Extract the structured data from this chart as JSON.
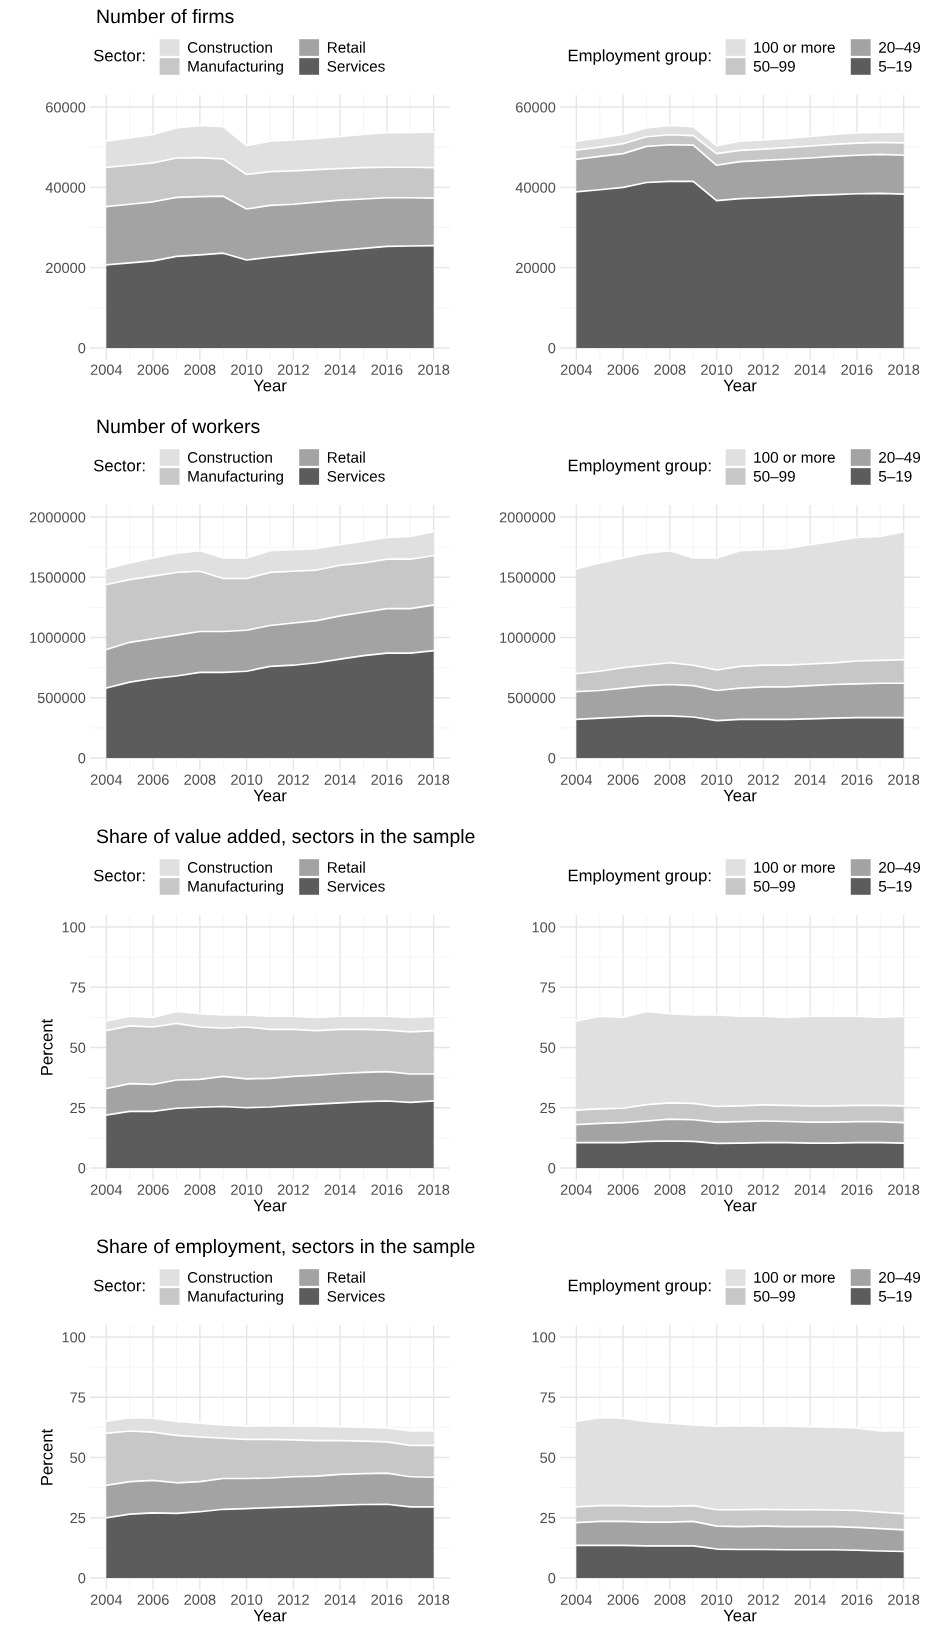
{
  "chart_data": [
    {
      "type": "area",
      "stacked": true,
      "title": "Number of firms",
      "xlabel": "Year",
      "legend_title": "Sector:",
      "legend": "top",
      "grid": true,
      "x": [
        2004,
        2005,
        2006,
        2007,
        2008,
        2009,
        2010,
        2011,
        2012,
        2013,
        2014,
        2015,
        2016,
        2017,
        2018
      ],
      "xlim": [
        2003.3,
        2018.7
      ],
      "xticks": [
        2004,
        2006,
        2008,
        2010,
        2012,
        2014,
        2016,
        2018
      ],
      "ylim": [
        -3000,
        63000
      ],
      "yticks": [
        0,
        20000,
        40000,
        60000
      ],
      "series": [
        {
          "name": "Services",
          "color": "#5c5c5c",
          "values": [
            20700,
            21200,
            21700,
            22800,
            23200,
            23600,
            21900,
            22600,
            23200,
            23800,
            24300,
            24800,
            25300,
            25400,
            25500
          ]
        },
        {
          "name": "Retail",
          "color": "#a3a3a3",
          "values": [
            14500,
            14600,
            14700,
            14700,
            14500,
            14200,
            12700,
            12900,
            12600,
            12500,
            12500,
            12300,
            12100,
            12000,
            11800
          ]
        },
        {
          "name": "Manufacturing",
          "color": "#c7c7c7",
          "values": [
            9800,
            9700,
            9700,
            9800,
            9700,
            9300,
            8600,
            8400,
            8300,
            8100,
            7900,
            7800,
            7600,
            7600,
            7600
          ]
        },
        {
          "name": "Construction",
          "color": "#e0e0e0",
          "values": [
            6500,
            6800,
            7100,
            7500,
            8000,
            8000,
            7200,
            7600,
            7700,
            7800,
            8000,
            8300,
            8600,
            8700,
            8900
          ]
        }
      ]
    },
    {
      "type": "area",
      "stacked": true,
      "xlabel": "Year",
      "legend_title": "Employment group:",
      "legend": "top",
      "grid": true,
      "x": [
        2004,
        2005,
        2006,
        2007,
        2008,
        2009,
        2010,
        2011,
        2012,
        2013,
        2014,
        2015,
        2016,
        2017,
        2018
      ],
      "xlim": [
        2003.3,
        2018.7
      ],
      "xticks": [
        2004,
        2006,
        2008,
        2010,
        2012,
        2014,
        2016,
        2018
      ],
      "ylim": [
        -3000,
        63000
      ],
      "yticks": [
        0,
        20000,
        40000,
        60000
      ],
      "series": [
        {
          "name": "5–19",
          "color": "#5c5c5c",
          "values": [
            38900,
            39400,
            40000,
            41200,
            41500,
            41500,
            36700,
            37200,
            37400,
            37700,
            38000,
            38200,
            38400,
            38500,
            38300
          ]
        },
        {
          "name": "20–49",
          "color": "#a3a3a3",
          "values": [
            8100,
            8300,
            8400,
            9000,
            9100,
            9000,
            8800,
            9200,
            9300,
            9300,
            9300,
            9500,
            9600,
            9700,
            9700
          ]
        },
        {
          "name": "50–99",
          "color": "#c7c7c7",
          "values": [
            2300,
            2300,
            2500,
            2400,
            2500,
            2400,
            2900,
            2800,
            2800,
            2900,
            3000,
            3000,
            3000,
            3000,
            3100
          ]
        },
        {
          "name": "100 or more",
          "color": "#e0e0e0",
          "values": [
            2200,
            2300,
            2300,
            2200,
            2300,
            2200,
            2000,
            2300,
            2300,
            2300,
            2400,
            2500,
            2600,
            2500,
            2700
          ]
        }
      ]
    },
    {
      "type": "area",
      "stacked": true,
      "title": "Number of workers",
      "xlabel": "Year",
      "legend_title": "Sector:",
      "legend": "top",
      "grid": true,
      "x": [
        2004,
        2005,
        2006,
        2007,
        2008,
        2009,
        2010,
        2011,
        2012,
        2013,
        2014,
        2015,
        2016,
        2017,
        2018
      ],
      "xlim": [
        2003.3,
        2018.7
      ],
      "xticks": [
        2004,
        2006,
        2008,
        2010,
        2012,
        2014,
        2016,
        2018
      ],
      "ylim": [
        -100000,
        2100000
      ],
      "yticks": [
        0,
        500000,
        1000000,
        1500000,
        2000000
      ],
      "series": [
        {
          "name": "Services",
          "color": "#5c5c5c",
          "values": [
            580000,
            630000,
            660000,
            680000,
            710000,
            710000,
            720000,
            760000,
            770000,
            790000,
            820000,
            850000,
            870000,
            870000,
            890000
          ]
        },
        {
          "name": "Retail",
          "color": "#a3a3a3",
          "values": [
            320000,
            330000,
            330000,
            340000,
            340000,
            340000,
            340000,
            340000,
            350000,
            350000,
            360000,
            360000,
            370000,
            370000,
            380000
          ]
        },
        {
          "name": "Manufacturing",
          "color": "#c7c7c7",
          "values": [
            540000,
            520000,
            520000,
            520000,
            500000,
            440000,
            430000,
            440000,
            430000,
            420000,
            420000,
            410000,
            410000,
            410000,
            410000
          ]
        },
        {
          "name": "Construction",
          "color": "#e0e0e0",
          "values": [
            130000,
            140000,
            150000,
            160000,
            170000,
            170000,
            170000,
            180000,
            180000,
            180000,
            170000,
            180000,
            180000,
            190000,
            200000
          ]
        }
      ]
    },
    {
      "type": "area",
      "stacked": true,
      "xlabel": "Year",
      "legend_title": "Employment group:",
      "legend": "top",
      "grid": true,
      "x": [
        2004,
        2005,
        2006,
        2007,
        2008,
        2009,
        2010,
        2011,
        2012,
        2013,
        2014,
        2015,
        2016,
        2017,
        2018
      ],
      "xlim": [
        2003.3,
        2018.7
      ],
      "xticks": [
        2004,
        2006,
        2008,
        2010,
        2012,
        2014,
        2016,
        2018
      ],
      "ylim": [
        -100000,
        2100000
      ],
      "yticks": [
        0,
        500000,
        1000000,
        1500000,
        2000000
      ],
      "series": [
        {
          "name": "5–19",
          "color": "#5c5c5c",
          "values": [
            320000,
            330000,
            340000,
            350000,
            350000,
            340000,
            310000,
            320000,
            320000,
            320000,
            325000,
            330000,
            335000,
            335000,
            335000
          ]
        },
        {
          "name": "20–49",
          "color": "#a3a3a3",
          "values": [
            230000,
            230000,
            240000,
            250000,
            260000,
            260000,
            250000,
            260000,
            270000,
            270000,
            275000,
            280000,
            280000,
            285000,
            285000
          ]
        },
        {
          "name": "50–99",
          "color": "#c7c7c7",
          "values": [
            150000,
            160000,
            170000,
            170000,
            180000,
            170000,
            170000,
            180000,
            180000,
            180000,
            180000,
            180000,
            190000,
            190000,
            195000
          ]
        },
        {
          "name": "100 or more",
          "color": "#e0e0e0",
          "values": [
            870000,
            900000,
            910000,
            930000,
            930000,
            890000,
            930000,
            960000,
            960000,
            970000,
            990000,
            1010000,
            1025000,
            1030000,
            1065000
          ]
        }
      ]
    },
    {
      "type": "area",
      "stacked": true,
      "title": "Share of value added, sectors in the sample",
      "xlabel": "Year",
      "ylabel": "Percent",
      "legend_title": "Sector:",
      "legend": "top",
      "grid": true,
      "x": [
        2004,
        2005,
        2006,
        2007,
        2008,
        2009,
        2010,
        2011,
        2012,
        2013,
        2014,
        2015,
        2016,
        2017,
        2018
      ],
      "xlim": [
        2003.3,
        2018.7
      ],
      "xticks": [
        2004,
        2006,
        2008,
        2010,
        2012,
        2014,
        2016,
        2018
      ],
      "ylim": [
        -5,
        105
      ],
      "yticks": [
        0,
        25,
        50,
        75,
        100
      ],
      "series": [
        {
          "name": "Services",
          "color": "#5c5c5c",
          "values": [
            22,
            23.5,
            23.5,
            24.8,
            25.2,
            25.5,
            25,
            25.3,
            26,
            26.5,
            27,
            27.5,
            27.8,
            27.2,
            27.8
          ]
        },
        {
          "name": "Retail",
          "color": "#a3a3a3",
          "values": [
            11,
            11.5,
            11.2,
            11.7,
            11.6,
            12.5,
            12,
            11.9,
            12,
            12,
            12.2,
            12.2,
            12.2,
            11.8,
            11.2
          ]
        },
        {
          "name": "Manufacturing",
          "color": "#c7c7c7",
          "values": [
            24,
            24,
            23.8,
            23.5,
            21.7,
            20,
            21.5,
            20.3,
            19.5,
            18.5,
            18.3,
            17.8,
            17.2,
            17.5,
            18
          ]
        },
        {
          "name": "Construction",
          "color": "#e0e0e0",
          "values": [
            4,
            4,
            4,
            5,
            5.5,
            5.5,
            5,
            5.5,
            5.5,
            5.5,
            5.5,
            5.5,
            5.8,
            6,
            6
          ]
        }
      ]
    },
    {
      "type": "area",
      "stacked": true,
      "xlabel": "Year",
      "legend_title": "Employment group:",
      "legend": "top",
      "grid": true,
      "x": [
        2004,
        2005,
        2006,
        2007,
        2008,
        2009,
        2010,
        2011,
        2012,
        2013,
        2014,
        2015,
        2016,
        2017,
        2018
      ],
      "xlim": [
        2003.3,
        2018.7
      ],
      "xticks": [
        2004,
        2006,
        2008,
        2010,
        2012,
        2014,
        2016,
        2018
      ],
      "ylim": [
        -5,
        105
      ],
      "yticks": [
        0,
        25,
        50,
        75,
        100
      ],
      "series": [
        {
          "name": "5–19",
          "color": "#5c5c5c",
          "values": [
            10.5,
            10.5,
            10.5,
            11,
            11.2,
            11,
            10.2,
            10.3,
            10.5,
            10.5,
            10.3,
            10.3,
            10.5,
            10.5,
            10.3
          ]
        },
        {
          "name": "20–49",
          "color": "#a3a3a3",
          "values": [
            7.5,
            8,
            8.3,
            8.5,
            9.1,
            9,
            8.8,
            8.9,
            9,
            8.8,
            8.7,
            8.7,
            8.7,
            8.7,
            8.5
          ]
        },
        {
          "name": "50–99",
          "color": "#c7c7c7",
          "values": [
            6,
            6,
            6,
            6.8,
            6.7,
            6.8,
            6.5,
            6.6,
            6.7,
            6.7,
            6.8,
            6.8,
            6.8,
            6.8,
            7
          ]
        },
        {
          "name": "100 or more",
          "color": "#e0e0e0",
          "values": [
            37,
            38.5,
            37.7,
            38.7,
            37,
            36.7,
            38,
            37.2,
            36.8,
            36.5,
            37.2,
            37.2,
            37,
            36.5,
            37.2
          ]
        }
      ]
    },
    {
      "type": "area",
      "stacked": true,
      "title": "Share of employment, sectors in the sample",
      "xlabel": "Year",
      "ylabel": "Percent",
      "legend_title": "Sector:",
      "legend": "top",
      "grid": true,
      "x": [
        2004,
        2005,
        2006,
        2007,
        2008,
        2009,
        2010,
        2011,
        2012,
        2013,
        2014,
        2015,
        2016,
        2017,
        2018
      ],
      "xlim": [
        2003.3,
        2018.7
      ],
      "xticks": [
        2004,
        2006,
        2008,
        2010,
        2012,
        2014,
        2016,
        2018
      ],
      "ylim": [
        -5,
        105
      ],
      "yticks": [
        0,
        25,
        50,
        75,
        100
      ],
      "series": [
        {
          "name": "Services",
          "color": "#5c5c5c",
          "values": [
            25,
            26.5,
            27,
            26.8,
            27.5,
            28.5,
            28.8,
            29.2,
            29.5,
            29.8,
            30.2,
            30.5,
            30.6,
            29.5,
            29.5
          ]
        },
        {
          "name": "Retail",
          "color": "#a3a3a3",
          "values": [
            13.5,
            13.5,
            13.5,
            12.7,
            12.5,
            12.8,
            12.5,
            12.3,
            12.5,
            12.5,
            12.8,
            12.8,
            12.9,
            12.5,
            12.3
          ]
        },
        {
          "name": "Manufacturing",
          "color": "#c7c7c7",
          "values": [
            21.5,
            21,
            20,
            19.7,
            18.5,
            16.7,
            16.2,
            16,
            15.3,
            14.7,
            14,
            13.5,
            13,
            13,
            13.2
          ]
        },
        {
          "name": "Construction",
          "color": "#e0e0e0",
          "values": [
            5,
            5.5,
            5.8,
            5.8,
            5.8,
            5.5,
            5.5,
            5.7,
            5.7,
            6,
            5.8,
            5.8,
            5.8,
            6,
            6
          ]
        }
      ]
    },
    {
      "type": "area",
      "stacked": true,
      "xlabel": "Year",
      "legend_title": "Employment group:",
      "legend": "top",
      "grid": true,
      "x": [
        2004,
        2005,
        2006,
        2007,
        2008,
        2009,
        2010,
        2011,
        2012,
        2013,
        2014,
        2015,
        2016,
        2017,
        2018
      ],
      "xlim": [
        2003.3,
        2018.7
      ],
      "xticks": [
        2004,
        2006,
        2008,
        2010,
        2012,
        2014,
        2016,
        2018
      ],
      "ylim": [
        -5,
        105
      ],
      "yticks": [
        0,
        25,
        50,
        75,
        100
      ],
      "series": [
        {
          "name": "5–19",
          "color": "#5c5c5c",
          "values": [
            13.5,
            13.5,
            13.5,
            13.3,
            13.3,
            13.3,
            12,
            11.8,
            11.8,
            11.7,
            11.7,
            11.7,
            11.5,
            11.2,
            11
          ]
        },
        {
          "name": "20–49",
          "color": "#a3a3a3",
          "values": [
            9.5,
            10,
            10,
            9.9,
            9.9,
            10.2,
            9.5,
            9.5,
            9.7,
            9.6,
            9.6,
            9.6,
            9.5,
            9.3,
            9
          ]
        },
        {
          "name": "50–99",
          "color": "#c7c7c7",
          "values": [
            6.5,
            6.5,
            6.5,
            6.5,
            6.5,
            6.5,
            6.8,
            7,
            7,
            7,
            7,
            6.9,
            7,
            6.8,
            6.7
          ]
        },
        {
          "name": "100 or more",
          "color": "#e0e0e0",
          "values": [
            35.5,
            36.5,
            36.3,
            35.3,
            34.6,
            33.5,
            34.7,
            34.9,
            34.5,
            34.7,
            34.5,
            34.4,
            34.3,
            33.7,
            34.3
          ]
        }
      ]
    }
  ]
}
